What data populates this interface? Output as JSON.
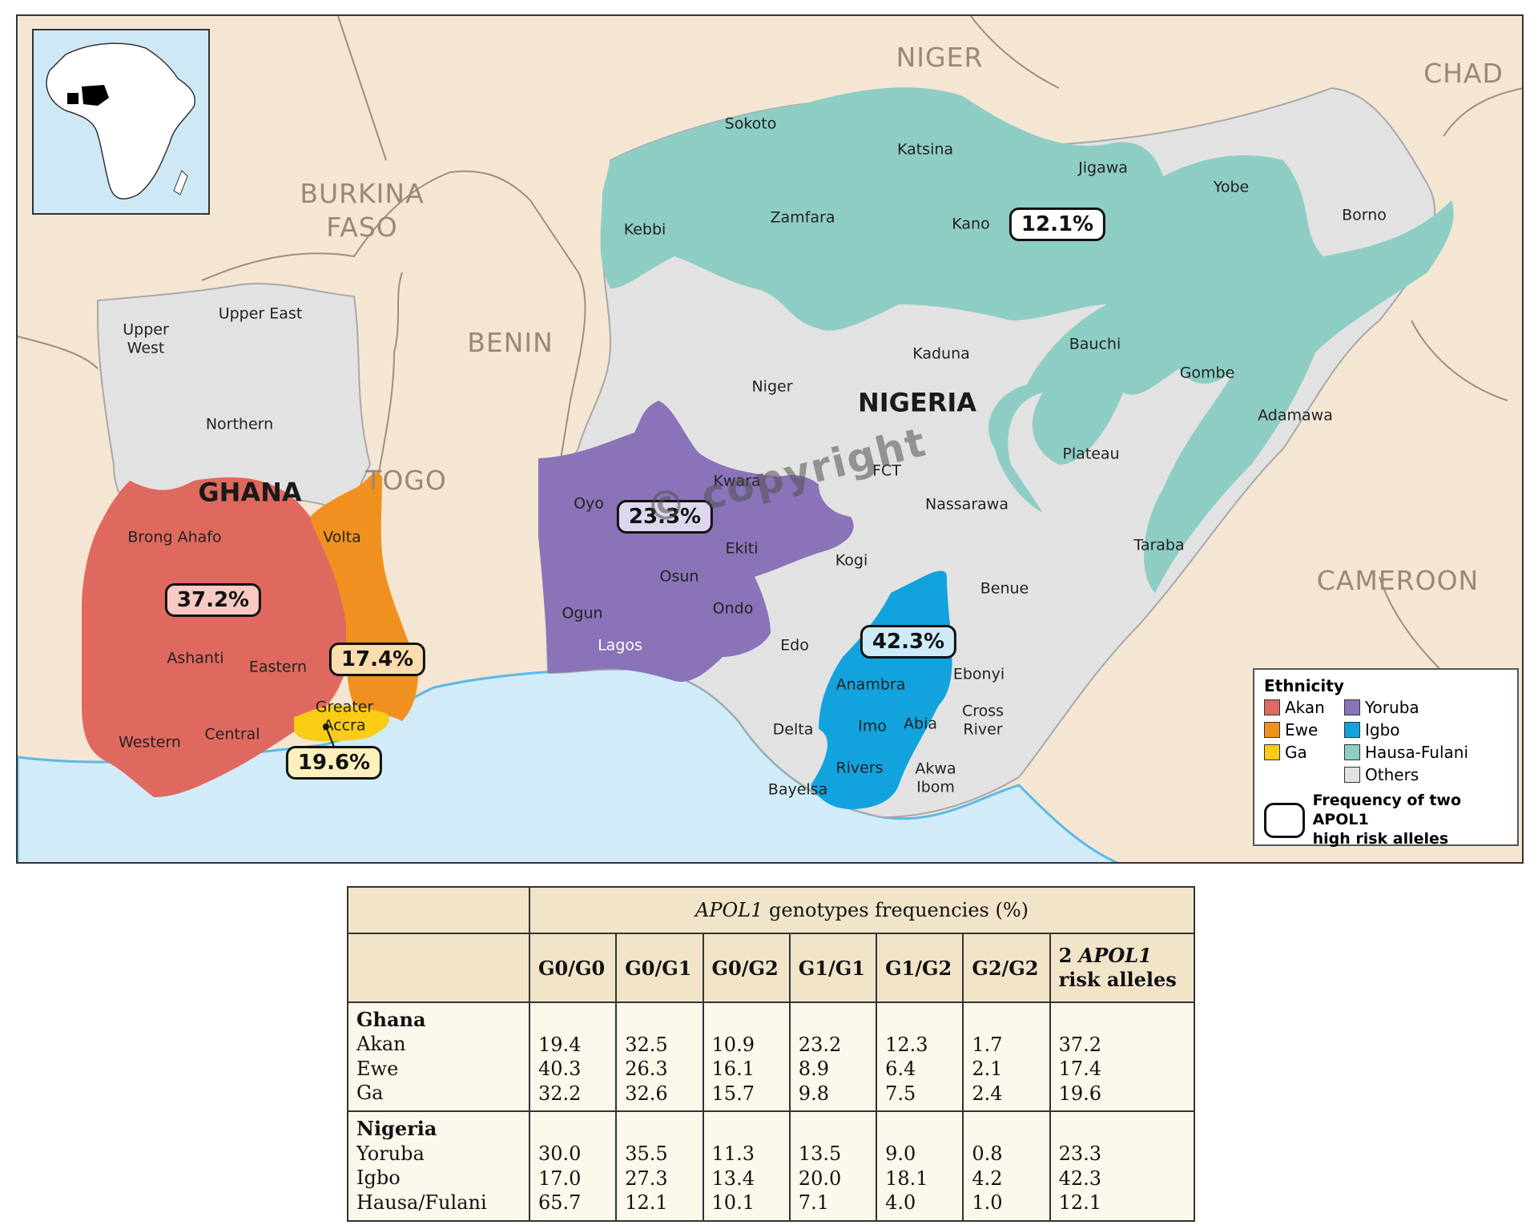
{
  "map": {
    "countries": {
      "niger": "NIGER",
      "chad": "CHAD",
      "burkina": [
        "BURKINA",
        "FASO"
      ],
      "benin": "BENIN",
      "togo": "TOGO",
      "cameroon": "CAMEROON",
      "ghana": "GHANA",
      "nigeria": "NIGERIA"
    },
    "regions_ghana": {
      "upper_west": [
        "Upper",
        "West"
      ],
      "upper_east": "Upper East",
      "northern": "Northern",
      "brong_ahafo": "Brong Ahafo",
      "volta": "Volta",
      "ashanti": "Ashanti",
      "eastern": "Eastern",
      "greater_accra": [
        "Greater",
        "Accra"
      ],
      "western": "Western",
      "central": "Central"
    },
    "states_nigeria": {
      "sokoto": "Sokoto",
      "katsina": "Katsina",
      "jigawa": "Jigawa",
      "yobe": "Yobe",
      "borno": "Borno",
      "kebbi": "Kebbi",
      "zamfara": "Zamfara",
      "kano": "Kano",
      "kaduna": "Kaduna",
      "bauchi": "Bauchi",
      "gombe": "Gombe",
      "niger": "Niger",
      "adamawa": "Adamawa",
      "plateau": "Plateau",
      "fct": "FCT",
      "kwara": "Kwara",
      "oyo": "Oyo",
      "nassarawa": "Nassarawa",
      "ekiti": "Ekiti",
      "osun": "Osun",
      "kogi": "Kogi",
      "taraba": "Taraba",
      "ogun": "Ogun",
      "ondo": "Ondo",
      "benue": "Benue",
      "lagos": "Lagos",
      "edo": "Edo",
      "ebonyi": "Ebonyi",
      "anambra": "Anambra",
      "cross_river": [
        "Cross",
        "River"
      ],
      "delta": "Delta",
      "imo": "Imo",
      "abia": "Abia",
      "rivers": "Rivers",
      "akwa_ibom": [
        "Akwa",
        "Ibom"
      ],
      "bayelsa": "Bayelsa"
    },
    "badges": {
      "hausa_fulani": "12.1%",
      "yoruba": "23.3%",
      "akan": "37.2%",
      "ewe": "17.4%",
      "igbo": "42.3%",
      "ga": "19.6%"
    },
    "watermark": "© copyright"
  },
  "legend": {
    "title": "Ethnicity",
    "items": [
      {
        "label": "Akan",
        "color": "#e0695f"
      },
      {
        "label": "Yoruba",
        "color": "#8a73b8"
      },
      {
        "label": "Ewe",
        "color": "#f0911f"
      },
      {
        "label": "Igbo",
        "color": "#12a3de"
      },
      {
        "label": "Ga",
        "color": "#f9cc16"
      },
      {
        "label": "Hausa-Fulani",
        "color": "#8ecdc4"
      },
      {
        "label": "",
        "color": ""
      },
      {
        "label": "Others",
        "color": "#e2e2e2"
      }
    ],
    "frequency_label": [
      "Frequency of two APOL1",
      "high risk alleles"
    ]
  },
  "colors": {
    "land": "#f4e6d3",
    "sea": "#d2ebf8",
    "others": "#e2e2e2",
    "akan": "#e0695f",
    "ewe": "#f0911f",
    "ga": "#f9cc16",
    "yoruba": "#8a73b8",
    "igbo": "#12a3de",
    "hausa": "#8ecdc4",
    "badge_akan": "#f6c9c2",
    "badge_ewe": "#fbdcae",
    "badge_ga": "#fdf0bd",
    "badge_yoruba": "#ddd6ee",
    "badge_igbo": "#cdeaf8",
    "badge_hausa": "#ffffff"
  },
  "table": {
    "header_italic": "APOL1",
    "header_rest": " genotypes frequencies (%)",
    "columns": [
      "G0/G0",
      "G0/G1",
      "G0/G2",
      "G1/G1",
      "G1/G2",
      "G2/G2"
    ],
    "last_col": {
      "prefix": "2 ",
      "italic": "APOL1",
      "suffix": "risk alleles"
    },
    "groups": [
      {
        "name": "Ghana",
        "rows": [
          {
            "label": "Akan",
            "values": [
              "19.4",
              "32.5",
              "10.9",
              "23.2",
              "12.3",
              "1.7",
              "37.2"
            ]
          },
          {
            "label": "Ewe",
            "values": [
              "40.3",
              "26.3",
              "16.1",
              "8.9",
              "6.4",
              "2.1",
              "17.4"
            ]
          },
          {
            "label": "Ga",
            "values": [
              "32.2",
              "32.6",
              "15.7",
              "9.8",
              "7.5",
              "2.4",
              "19.6"
            ]
          }
        ]
      },
      {
        "name": "Nigeria",
        "rows": [
          {
            "label": "Yoruba",
            "values": [
              "30.0",
              "35.5",
              "11.3",
              "13.5",
              "9.0",
              "0.8",
              "23.3"
            ]
          },
          {
            "label": "Igbo",
            "values": [
              "17.0",
              "27.3",
              "13.4",
              "20.0",
              "18.1",
              "4.2",
              "42.3"
            ]
          },
          {
            "label": "Hausa/Fulani",
            "values": [
              "65.7",
              "12.1",
              "10.1",
              "7.1",
              "4.0",
              "1.0",
              "12.1"
            ]
          }
        ]
      }
    ]
  }
}
